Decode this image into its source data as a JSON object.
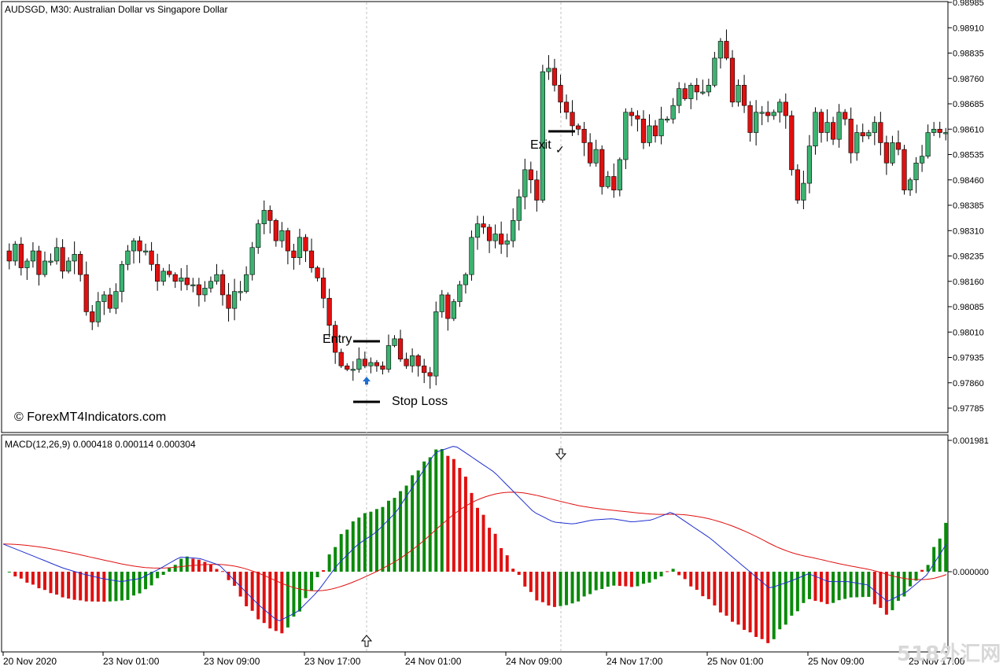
{
  "header": {
    "symbol_title": "AUDSGD, M30:  Australian Dollar vs Singapore Dollar",
    "macd_label": "MACD(12,26,9) 0.000418 0.000114 0.000304"
  },
  "watermarks": {
    "copyright": "© ForexMT4Indicators.com",
    "corner_logo": "518外汇网"
  },
  "annotations": {
    "entry": "Entry",
    "exit": "Exit",
    "stop_loss": "Stop Loss",
    "checkmark": "✓"
  },
  "colors": {
    "bull": "#3cb371",
    "bear": "#e01010",
    "macd_line": "#1f2fd0",
    "signal_line": "#e01010",
    "hist_pos_up": "#0a8a0a",
    "hist_pos_down": "#e01010",
    "grid": "#c0c0c0",
    "entry_arrow": "#1e6fd0"
  },
  "chart_data": [
    {
      "type": "candlestick",
      "title": "AUDSGD, M30:  Australian Dollar vs Singapore Dollar",
      "timeframe": "M30",
      "x_tick_labels": [
        "20 Nov 2020",
        "23 Nov 01:00",
        "23 Nov 09:00",
        "23 Nov 17:00",
        "24 Nov 01:00",
        "24 Nov 09:00",
        "24 Nov 17:00",
        "25 Nov 01:00",
        "25 Nov 09:00",
        "25 Nov 17:00"
      ],
      "y_tick_labels": [
        "0.98985",
        "0.98910",
        "0.98835",
        "0.98760",
        "0.98685",
        "0.98610",
        "0.98535",
        "0.98460",
        "0.98385",
        "0.98310",
        "0.98235",
        "0.98160",
        "0.98085",
        "0.98010",
        "0.97935",
        "0.97860",
        "0.97785"
      ],
      "ylim": [
        0.9775,
        0.98985
      ],
      "entry_price": 0.97985,
      "stop_loss_price": 0.97775,
      "exit_price": 0.98605,
      "closes": [
        0.9822,
        0.9827,
        0.982,
        0.9822,
        0.9825,
        0.9818,
        0.9822,
        0.9822,
        0.9826,
        0.9819,
        0.9822,
        0.9824,
        0.9818,
        0.9807,
        0.9804,
        0.981,
        0.9812,
        0.9808,
        0.9813,
        0.9821,
        0.9825,
        0.9828,
        0.9825,
        0.9825,
        0.9821,
        0.9816,
        0.9819,
        0.9818,
        0.9816,
        0.9817,
        0.9815,
        0.9815,
        0.9812,
        0.9814,
        0.9816,
        0.9818,
        0.9812,
        0.9808,
        0.9813,
        0.9813,
        0.9818,
        0.9826,
        0.9833,
        0.9837,
        0.9834,
        0.9828,
        0.9831,
        0.9825,
        0.9823,
        0.9829,
        0.9825,
        0.982,
        0.9817,
        0.9811,
        0.9803,
        0.9795,
        0.9791,
        0.979,
        0.979,
        0.9793,
        0.9791,
        0.9792,
        0.9791,
        0.979,
        0.9797,
        0.9799,
        0.9793,
        0.9791,
        0.9794,
        0.9791,
        0.9789,
        0.9788,
        0.9807,
        0.9812,
        0.9805,
        0.981,
        0.9815,
        0.9818,
        0.9829,
        0.9833,
        0.9832,
        0.9828,
        0.983,
        0.9827,
        0.9828,
        0.9834,
        0.9841,
        0.9849,
        0.9846,
        0.984,
        0.9878,
        0.9879,
        0.9874,
        0.9869,
        0.9866,
        0.9862,
        0.9861,
        0.9857,
        0.9851,
        0.9855,
        0.9844,
        0.9847,
        0.9843,
        0.9852,
        0.9866,
        0.9865,
        0.9864,
        0.9857,
        0.9862,
        0.9859,
        0.9864,
        0.9864,
        0.9868,
        0.9873,
        0.987,
        0.9874,
        0.9872,
        0.9872,
        0.9874,
        0.9882,
        0.9887,
        0.9882,
        0.9869,
        0.9874,
        0.9868,
        0.986,
        0.9866,
        0.9866,
        0.9865,
        0.9866,
        0.9869,
        0.9865,
        0.9849,
        0.984,
        0.9845,
        0.9856,
        0.9866,
        0.986,
        0.9863,
        0.9858,
        0.9866,
        0.9864,
        0.9854,
        0.986,
        0.9859,
        0.986,
        0.9863,
        0.9857,
        0.9851,
        0.9857,
        0.9855,
        0.9843,
        0.9846,
        0.9851,
        0.9853,
        0.986,
        0.9861,
        0.986,
        0.986
      ]
    },
    {
      "type": "line+histogram",
      "title": "MACD(12,26,9) 0.000418 0.000114 0.000304",
      "indicator": "MACD",
      "params": [
        12,
        26,
        9
      ],
      "y_tick_labels": [
        "0.001981",
        "0.000000"
      ],
      "ylim": [
        -0.00087,
        0.001981
      ],
      "macd": [
        0.000418,
        0.0003,
        0.00018,
        6e-05,
        -3e-05,
        -0.0001,
        -0.00015,
        -0.0001,
        5e-05,
        0.00022,
        0.0002,
        0.0001,
        -0.0002,
        -0.0005,
        -0.00075,
        -0.0006,
        -0.0003,
        0.0001,
        0.0004,
        0.0006,
        0.0009,
        0.00135,
        0.0018,
        0.0019,
        0.0017,
        0.0015,
        0.0012,
        0.0009,
        0.00075,
        0.00072,
        0.00078,
        0.0008,
        0.00075,
        0.00078,
        0.0009,
        0.0007,
        0.0005,
        0.00025,
        0.0,
        -0.00025,
        -0.00015,
        -3e-05,
        -0.00015,
        -0.00015,
        -0.0002,
        -0.00045,
        -0.0003,
        -5e-05,
        0.000418
      ],
      "signal": [
        9e-05,
        9e-05,
        9e-05,
        9e-05,
        9e-05,
        9e-05,
        9e-05,
        9e-05,
        9e-05,
        9e-05,
        9e-05,
        9e-05,
        9e-05,
        9e-05,
        9e-05,
        9e-05,
        9e-05,
        9e-05,
        9e-05,
        9e-05,
        9e-05,
        9e-05,
        9e-05,
        9e-05,
        9e-05,
        9e-05,
        9e-05,
        9e-05,
        9e-05,
        9e-05,
        9e-05,
        9e-05,
        9e-05,
        9e-05,
        9e-05,
        9e-05,
        9e-05,
        9e-05,
        9e-05,
        9e-05,
        9e-05,
        9e-05,
        9e-05,
        9e-05,
        9e-05,
        9e-05,
        9e-05,
        9e-05,
        0.000114
      ]
    }
  ]
}
